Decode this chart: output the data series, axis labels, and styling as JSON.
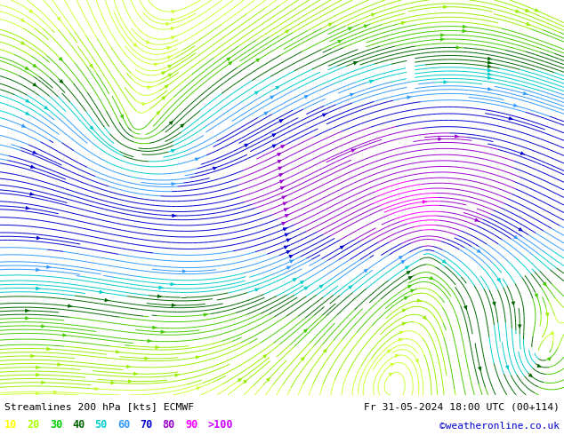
{
  "title_left": "Streamlines 200 hPa [kts] ECMWF",
  "title_right": "Fr 31-05-2024 18:00 UTC (00+114)",
  "credit": "©weatheronline.co.uk",
  "legend_values": [
    "10",
    "20",
    "30",
    "40",
    "50",
    "60",
    "70",
    "80",
    "90",
    ">100"
  ],
  "legend_colors": [
    "#ffff00",
    "#aaff00",
    "#00cc00",
    "#006600",
    "#00ffff",
    "#0099ff",
    "#0000ff",
    "#cc00cc",
    "#ff00ff",
    "#cc00ff"
  ],
  "bg_color": "#99ee66",
  "text_color": "#000000",
  "bottom_bar_color": "#ffffff",
  "figsize": [
    6.34,
    4.9
  ],
  "dpi": 100,
  "map_extent": [
    -25,
    45,
    25,
    72
  ]
}
